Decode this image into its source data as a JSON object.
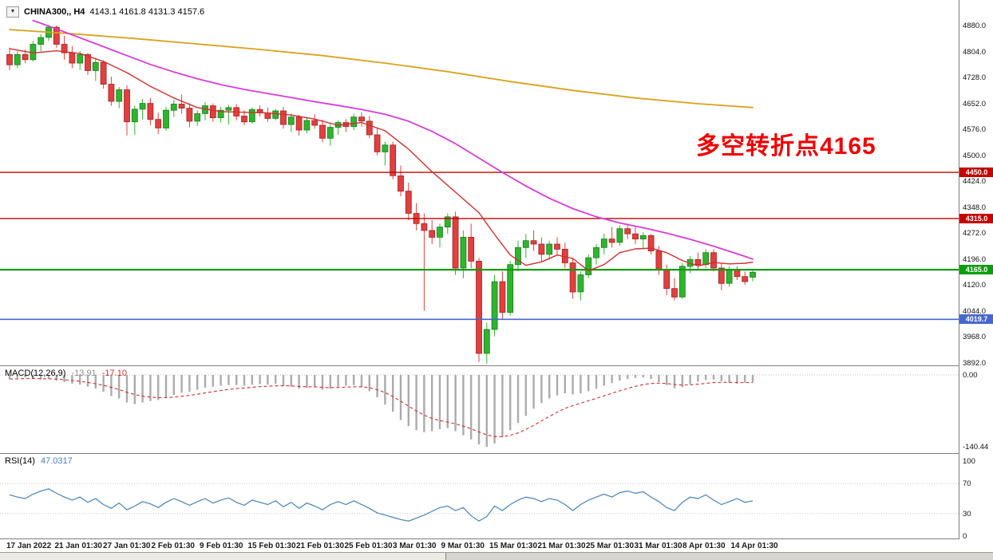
{
  "header": {
    "dropdown_icon": "▼",
    "symbol_timeframe": "CHINA300,, H4",
    "ohlc": "4143.1 4161.8 4131.3 4157.6"
  },
  "chart_data": {
    "type": "candlestick",
    "title": "CHINA300 H4 chart with MACD and RSI",
    "symbol": "CHINA300",
    "timeframe": "H4",
    "ohlc_header": {
      "open": 4143.1,
      "high": 4161.8,
      "low": 4131.3,
      "close": 4157.6
    },
    "ylim": [
      3892,
      4880
    ],
    "y_ticks": [
      "4880.0",
      "4804.0",
      "4728.0",
      "4652.0",
      "4576.0",
      "4500.0",
      "4424.0",
      "4348.0",
      "4272.0",
      "4196.0",
      "4120.0",
      "4044.0",
      "3968.0",
      "3892.0"
    ],
    "x_ticks": [
      "17 Jan 2022",
      "21 Jan 01:30",
      "27 Jan 01:30",
      "2 Feb 01:30",
      "9 Feb 01:30",
      "15 Feb 01:30",
      "21 Feb 01:30",
      "25 Feb 01:30",
      "3 Mar 01:30",
      "9 Mar 01:30",
      "15 Mar 01:30",
      "21 Mar 01:30",
      "25 Mar 01:30",
      "31 Mar 01:30",
      "8 Apr 01:30",
      "14 Apr 01:30"
    ],
    "up_color": "#2eb52e",
    "up_stroke": "#1d7a1d",
    "down_color": "#e04040",
    "down_stroke": "#a32222",
    "candles": [
      [
        4795,
        4815,
        4750,
        4765
      ],
      [
        4765,
        4805,
        4755,
        4795
      ],
      [
        4795,
        4810,
        4770,
        4780
      ],
      [
        4780,
        4835,
        4775,
        4825
      ],
      [
        4825,
        4855,
        4805,
        4845
      ],
      [
        4845,
        4882,
        4835,
        4875
      ],
      [
        4875,
        4880,
        4815,
        4825
      ],
      [
        4825,
        4850,
        4780,
        4800
      ],
      [
        4800,
        4820,
        4755,
        4770
      ],
      [
        4770,
        4805,
        4750,
        4795
      ],
      [
        4795,
        4800,
        4735,
        4748
      ],
      [
        4748,
        4785,
        4718,
        4772
      ],
      [
        4772,
        4778,
        4695,
        4708
      ],
      [
        4708,
        4730,
        4645,
        4658
      ],
      [
        4658,
        4700,
        4638,
        4692
      ],
      [
        4692,
        4705,
        4558,
        4598
      ],
      [
        4598,
        4645,
        4560,
        4635
      ],
      [
        4635,
        4665,
        4605,
        4652
      ],
      [
        4652,
        4668,
        4588,
        4605
      ],
      [
        4605,
        4625,
        4562,
        4580
      ],
      [
        4580,
        4642,
        4572,
        4632
      ],
      [
        4632,
        4662,
        4612,
        4650
      ],
      [
        4650,
        4678,
        4622,
        4638
      ],
      [
        4638,
        4652,
        4582,
        4600
      ],
      [
        4600,
        4632,
        4586,
        4622
      ],
      [
        4622,
        4655,
        4602,
        4645
      ],
      [
        4645,
        4652,
        4598,
        4610
      ],
      [
        4610,
        4642,
        4596,
        4632
      ],
      [
        4632,
        4648,
        4590,
        4640
      ],
      [
        4640,
        4650,
        4602,
        4615
      ],
      [
        4615,
        4632,
        4588,
        4598
      ],
      [
        4598,
        4640,
        4592,
        4634
      ],
      [
        4634,
        4646,
        4614,
        4624
      ],
      [
        4624,
        4640,
        4598,
        4608
      ],
      [
        4608,
        4636,
        4602,
        4630
      ],
      [
        4630,
        4642,
        4578,
        4590
      ],
      [
        4590,
        4622,
        4568,
        4612
      ],
      [
        4612,
        4618,
        4558,
        4574
      ],
      [
        4574,
        4612,
        4564,
        4602
      ],
      [
        4602,
        4620,
        4578,
        4588
      ],
      [
        4588,
        4605,
        4538,
        4550
      ],
      [
        4550,
        4592,
        4528,
        4582
      ],
      [
        4582,
        4602,
        4560,
        4596
      ],
      [
        4596,
        4606,
        4568,
        4584
      ],
      [
        4584,
        4622,
        4574,
        4612
      ],
      [
        4612,
        4626,
        4584,
        4600
      ],
      [
        4600,
        4615,
        4550,
        4560
      ],
      [
        4560,
        4580,
        4500,
        4510
      ],
      [
        4510,
        4540,
        4470,
        4530
      ],
      [
        4530,
        4540,
        4430,
        4440
      ],
      [
        4440,
        4470,
        4380,
        4395
      ],
      [
        4395,
        4420,
        4310,
        4330
      ],
      [
        4330,
        4360,
        4280,
        4300
      ],
      [
        4300,
        4330,
        4045,
        4280
      ],
      [
        4280,
        4310,
        4240,
        4260
      ],
      [
        4260,
        4300,
        4230,
        4290
      ],
      [
        4290,
        4330,
        4270,
        4320
      ],
      [
        4320,
        4335,
        4150,
        4170
      ],
      [
        4170,
        4280,
        4140,
        4260
      ],
      [
        4260,
        4300,
        4170,
        4190
      ],
      [
        4190,
        4200,
        3895,
        3920
      ],
      [
        3920,
        4010,
        3890,
        3990
      ],
      [
        3990,
        4150,
        3970,
        4130
      ],
      [
        4130,
        4160,
        4020,
        4040
      ],
      [
        4040,
        4190,
        4030,
        4180
      ],
      [
        4180,
        4250,
        4160,
        4230
      ],
      [
        4230,
        4270,
        4200,
        4250
      ],
      [
        4250,
        4280,
        4220,
        4240
      ],
      [
        4240,
        4260,
        4190,
        4210
      ],
      [
        4210,
        4250,
        4195,
        4240
      ],
      [
        4240,
        4260,
        4210,
        4225
      ],
      [
        4225,
        4245,
        4170,
        4185
      ],
      [
        4185,
        4200,
        4080,
        4100
      ],
      [
        4100,
        4160,
        4075,
        4150
      ],
      [
        4150,
        4210,
        4140,
        4200
      ],
      [
        4200,
        4240,
        4180,
        4230
      ],
      [
        4230,
        4270,
        4210,
        4255
      ],
      [
        4255,
        4290,
        4230,
        4245
      ],
      [
        4245,
        4295,
        4235,
        4285
      ],
      [
        4285,
        4300,
        4255,
        4270
      ],
      [
        4270,
        4290,
        4240,
        4255
      ],
      [
        4255,
        4275,
        4225,
        4265
      ],
      [
        4265,
        4270,
        4210,
        4220
      ],
      [
        4220,
        4235,
        4150,
        4165
      ],
      [
        4165,
        4180,
        4090,
        4110
      ],
      [
        4110,
        4140,
        4075,
        4085
      ],
      [
        4085,
        4185,
        4080,
        4175
      ],
      [
        4175,
        4205,
        4155,
        4195
      ],
      [
        4195,
        4215,
        4165,
        4180
      ],
      [
        4180,
        4225,
        4170,
        4215
      ],
      [
        4215,
        4225,
        4160,
        4170
      ],
      [
        4170,
        4185,
        4105,
        4125
      ],
      [
        4125,
        4175,
        4115,
        4165
      ],
      [
        4165,
        4175,
        4135,
        4145
      ],
      [
        4145,
        4160,
        4120,
        4130
      ],
      [
        4143.1,
        4161.8,
        4131.3,
        4157.6
      ]
    ],
    "moving_averages": [
      {
        "name": "slow-ma",
        "color": "#d9a21b",
        "width": 1.8,
        "points": [
          [
            0,
            4868
          ],
          [
            8,
            4856
          ],
          [
            16,
            4842
          ],
          [
            24,
            4826
          ],
          [
            32,
            4810
          ],
          [
            40,
            4792
          ],
          [
            48,
            4770
          ],
          [
            56,
            4745
          ],
          [
            64,
            4716
          ],
          [
            72,
            4690
          ],
          [
            80,
            4668
          ],
          [
            88,
            4651
          ],
          [
            95,
            4640
          ]
        ]
      },
      {
        "name": "mid-ma",
        "color": "#d63cd6",
        "width": 1.8,
        "points": [
          [
            3,
            4895
          ],
          [
            6,
            4870
          ],
          [
            9,
            4844
          ],
          [
            12,
            4818
          ],
          [
            15,
            4792
          ],
          [
            18,
            4766
          ],
          [
            21,
            4744
          ],
          [
            24,
            4724
          ],
          [
            27,
            4707
          ],
          [
            30,
            4693
          ],
          [
            33,
            4681
          ],
          [
            36,
            4669
          ],
          [
            39,
            4657
          ],
          [
            42,
            4646
          ],
          [
            45,
            4634
          ],
          [
            48,
            4620
          ],
          [
            51,
            4600
          ],
          [
            54,
            4570
          ],
          [
            57,
            4534
          ],
          [
            60,
            4492
          ],
          [
            63,
            4450
          ],
          [
            66,
            4410
          ],
          [
            69,
            4374
          ],
          [
            72,
            4344
          ],
          [
            75,
            4320
          ],
          [
            78,
            4302
          ],
          [
            81,
            4288
          ],
          [
            84,
            4272
          ],
          [
            87,
            4254
          ],
          [
            90,
            4234
          ],
          [
            92,
            4219
          ],
          [
            94,
            4204
          ],
          [
            95,
            4196
          ]
        ]
      },
      {
        "name": "fast-ma",
        "color": "#cf2e2e",
        "width": 1.4,
        "points": [
          [
            0,
            4812
          ],
          [
            3,
            4800
          ],
          [
            6,
            4806
          ],
          [
            9,
            4798
          ],
          [
            12,
            4775
          ],
          [
            15,
            4742
          ],
          [
            18,
            4702
          ],
          [
            21,
            4668
          ],
          [
            24,
            4640
          ],
          [
            27,
            4628
          ],
          [
            30,
            4626
          ],
          [
            33,
            4624
          ],
          [
            36,
            4618
          ],
          [
            39,
            4606
          ],
          [
            42,
            4588
          ],
          [
            45,
            4596
          ],
          [
            48,
            4572
          ],
          [
            51,
            4518
          ],
          [
            54,
            4452
          ],
          [
            57,
            4392
          ],
          [
            60,
            4332
          ],
          [
            62,
            4268
          ],
          [
            64,
            4208
          ],
          [
            66,
            4178
          ],
          [
            68,
            4188
          ],
          [
            70,
            4208
          ],
          [
            72,
            4198
          ],
          [
            74,
            4162
          ],
          [
            76,
            4180
          ],
          [
            78,
            4215
          ],
          [
            80,
            4226
          ],
          [
            82,
            4228
          ],
          [
            84,
            4215
          ],
          [
            86,
            4192
          ],
          [
            88,
            4176
          ],
          [
            90,
            4186
          ],
          [
            92,
            4182
          ],
          [
            94,
            4184
          ],
          [
            95,
            4187
          ]
        ]
      }
    ],
    "hlines": [
      {
        "price": 4450.0,
        "label": "4450.0",
        "color": "#c40000",
        "width": 1.4
      },
      {
        "price": 4315.0,
        "label": "4315.0",
        "color": "#c40000",
        "width": 1.4
      },
      {
        "price": 4165.0,
        "label": "4165.0",
        "color": "#0a9e0a",
        "width": 2.2
      },
      {
        "price": 4019.7,
        "label": "4019.7",
        "color": "#4667d0",
        "width": 1.6
      }
    ],
    "annotation": {
      "text": "多空转折点4165",
      "color": "#f00000"
    },
    "macd": {
      "title": "MACD(12,26,9)",
      "value_main": "-13.91",
      "value_signal": "-17.10",
      "value_main_color": "#8c8c8c",
      "zero_label": "0.00",
      "min_label": "-140.44",
      "ylim": [
        -140.44,
        0
      ],
      "hist_color": "#ababab",
      "signal_color": "#cc3030",
      "histogram": [
        -8,
        -6,
        -5,
        -7,
        -9,
        -8,
        -11,
        -14,
        -17,
        -19,
        -23,
        -27,
        -33,
        -41,
        -46,
        -54,
        -57,
        -54,
        -51,
        -49,
        -44,
        -39,
        -35,
        -33,
        -29,
        -25,
        -23,
        -21,
        -20,
        -20,
        -21,
        -19,
        -18,
        -19,
        -17,
        -21,
        -23,
        -27,
        -25,
        -24,
        -29,
        -27,
        -23,
        -21,
        -20,
        -24,
        -32,
        -44,
        -58,
        -72,
        -88,
        -100,
        -108,
        -112,
        -110,
        -106,
        -104,
        -110,
        -118,
        -126,
        -136,
        -140.4,
        -134,
        -122,
        -108,
        -94,
        -80,
        -66,
        -55,
        -46,
        -40,
        -36,
        -38,
        -36,
        -32,
        -27,
        -21,
        -16,
        -11,
        -8,
        -6,
        -5,
        -8,
        -14,
        -20,
        -26,
        -24,
        -18,
        -13,
        -10,
        -9,
        -12,
        -15,
        -17,
        -15,
        -13.91
      ]
    },
    "rsi": {
      "title": "RSI(14)",
      "value": "47.0317",
      "line_color": "#4682b4",
      "levels": [
        100,
        70,
        30,
        0
      ],
      "dotted_levels": [
        70,
        30
      ],
      "values": [
        55,
        52,
        50,
        56,
        60,
        63,
        57,
        52,
        48,
        52,
        45,
        50,
        42,
        37,
        44,
        35,
        40,
        46,
        43,
        38,
        45,
        50,
        46,
        41,
        46,
        50,
        44,
        48,
        51,
        45,
        41,
        48,
        45,
        42,
        47,
        39,
        45,
        37,
        44,
        40,
        35,
        42,
        46,
        42,
        47,
        42,
        37,
        31,
        28,
        25,
        22,
        20,
        24,
        28,
        33,
        38,
        40,
        34,
        38,
        27,
        20,
        26,
        40,
        34,
        42,
        48,
        52,
        50,
        46,
        50,
        48,
        42,
        34,
        42,
        48,
        52,
        56,
        52,
        58,
        60,
        57,
        59,
        52,
        46,
        38,
        34,
        45,
        52,
        50,
        55,
        48,
        42,
        46,
        50,
        45,
        47.03
      ]
    }
  }
}
